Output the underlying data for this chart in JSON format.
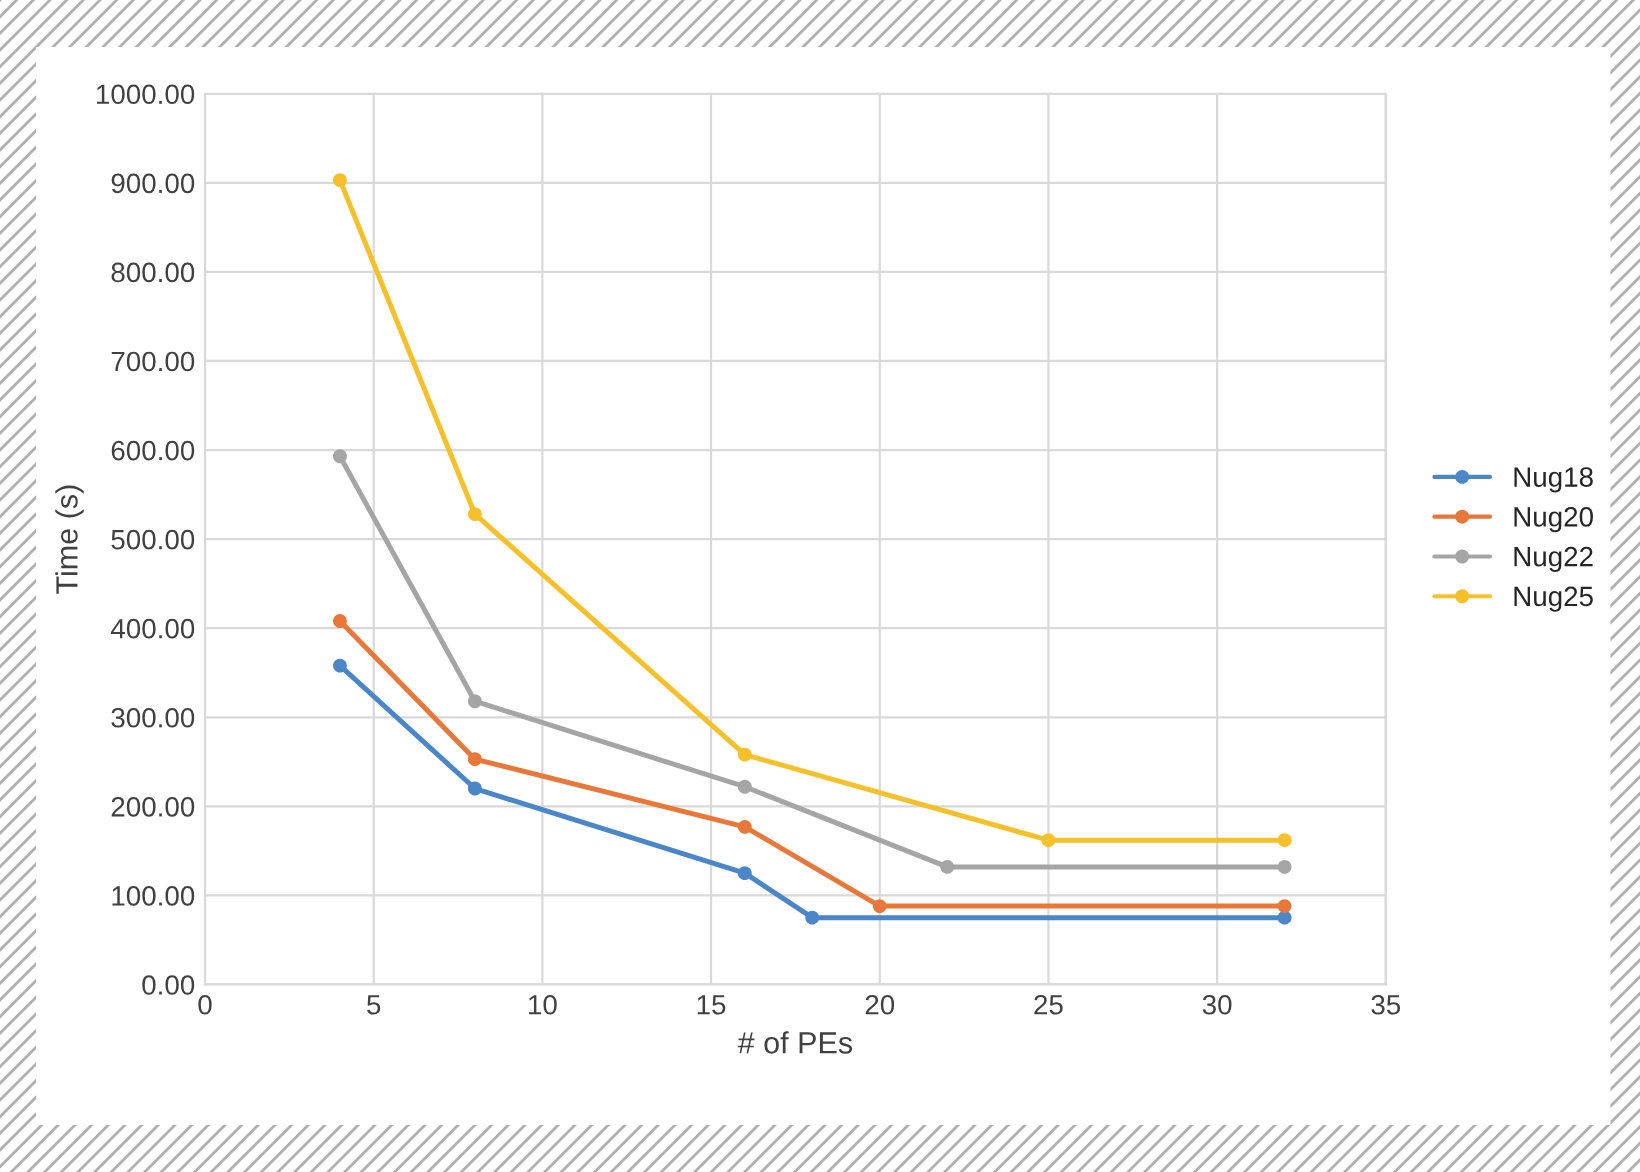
{
  "chart_data": {
    "type": "line",
    "xlabel": "# of PEs",
    "ylabel": "Time (s)",
    "series": [
      {
        "name": "Nug18",
        "color": "#4a86c8",
        "x": [
          4,
          8,
          16,
          18,
          32
        ],
        "values": [
          358,
          220,
          125,
          75,
          75
        ]
      },
      {
        "name": "Nug20",
        "color": "#e8773a",
        "x": [
          4,
          8,
          16,
          20,
          32
        ],
        "values": [
          408,
          253,
          177,
          88,
          88
        ]
      },
      {
        "name": "Nug22",
        "color": "#a5a5a5",
        "x": [
          4,
          8,
          16,
          22,
          32
        ],
        "values": [
          593,
          318,
          222,
          132,
          132
        ]
      },
      {
        "name": "Nug25",
        "color": "#f5c02a",
        "x": [
          4,
          8,
          16,
          25,
          32
        ],
        "values": [
          903,
          528,
          258,
          162,
          162
        ]
      }
    ],
    "xlim": [
      0,
      35
    ],
    "xticks": [
      0,
      5,
      10,
      15,
      20,
      25,
      30,
      35
    ],
    "ylim": [
      0,
      1000
    ],
    "yticks": [
      {
        "value": 0,
        "label": "0.00"
      },
      {
        "value": 100,
        "label": "100.00"
      },
      {
        "value": 200,
        "label": "200.00"
      },
      {
        "value": 300,
        "label": "300.00"
      },
      {
        "value": 400,
        "label": "400.00"
      },
      {
        "value": 500,
        "label": "500.00"
      },
      {
        "value": 600,
        "label": "600.00"
      },
      {
        "value": 700,
        "label": "700.00"
      },
      {
        "value": 800,
        "label": "800.00"
      },
      {
        "value": 900,
        "label": "900.00"
      },
      {
        "value": 1000,
        "label": "1000.00"
      }
    ],
    "grid": true,
    "legend": "right",
    "marker": "circle",
    "line_style": "solid"
  }
}
